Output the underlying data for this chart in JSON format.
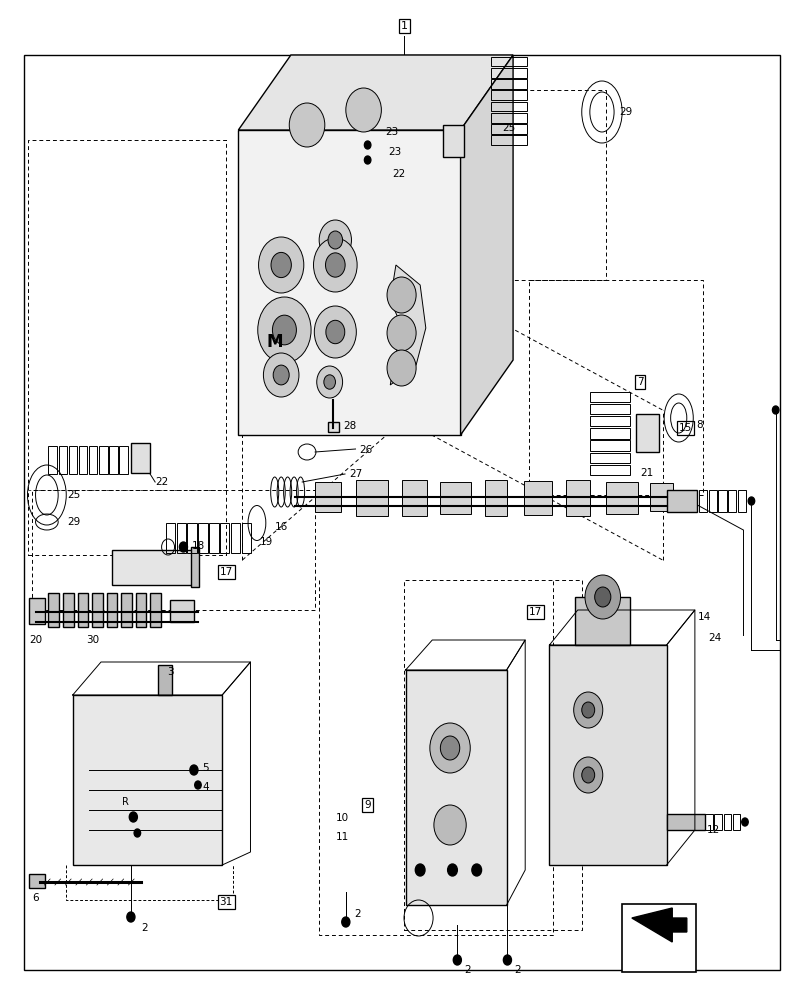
{
  "bg_color": "#ffffff",
  "line_color": "#000000",
  "label_color": "#000000",
  "fig_width": 8.08,
  "fig_height": 10.0,
  "dpi": 100
}
